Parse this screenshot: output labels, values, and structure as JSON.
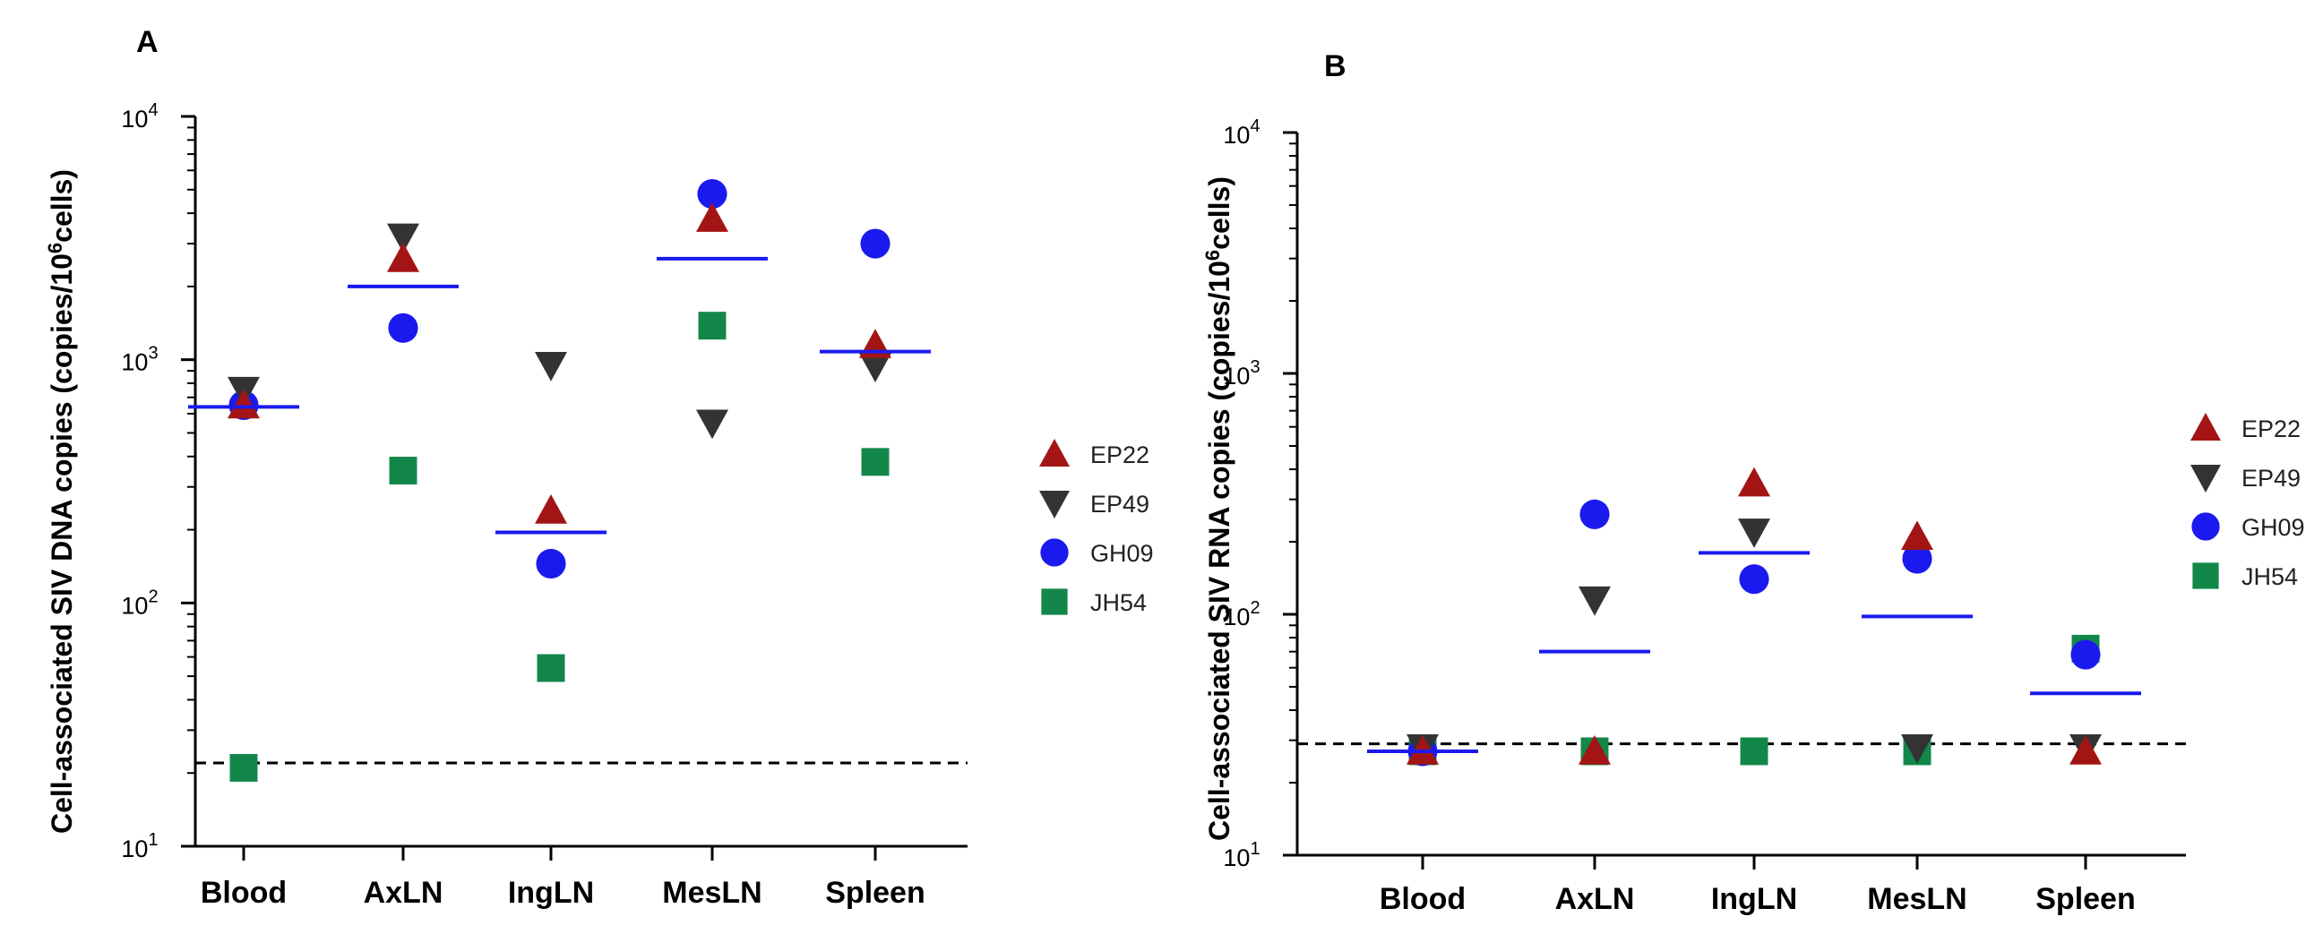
{
  "chart_data": [
    {
      "type": "scatter",
      "panel": "A",
      "categories": [
        "Blood",
        "AxLN",
        "IngLN",
        "MesLN",
        "Spleen"
      ],
      "ylabel": "Cell-associated SIV DNA copies (copies/10^6cells)",
      "ylabel_parts": {
        "prefix": "Cell-associated SIV DNA copies (copies/10",
        "sup": "6",
        "suffix": "cells)"
      },
      "yscale": "log",
      "ylim": [
        10,
        10000
      ],
      "yticks": [
        {
          "value": 10,
          "base": "10",
          "exp": "1"
        },
        {
          "value": 100,
          "base": "10",
          "exp": "2"
        },
        {
          "value": 1000,
          "base": "10",
          "exp": "3"
        },
        {
          "value": 10000,
          "base": "10",
          "exp": "4"
        }
      ],
      "detection_limit": 22,
      "means": [
        640,
        2000,
        195,
        2600,
        1080
      ],
      "series": [
        {
          "name": "EP22",
          "values": [
            650,
            2600,
            240,
            3800,
            1150
          ]
        },
        {
          "name": "EP49",
          "values": [
            750,
            3200,
            950,
            550,
            940
          ]
        },
        {
          "name": "GH09",
          "values": [
            650,
            1350,
            145,
            4800,
            3000
          ]
        },
        {
          "name": "JH54",
          "values": [
            21,
            350,
            54,
            1380,
            380
          ]
        }
      ]
    },
    {
      "type": "scatter",
      "panel": "B",
      "categories": [
        "Blood",
        "AxLN",
        "IngLN",
        "MesLN",
        "Spleen"
      ],
      "ylabel": "Cell-associated SIV RNA copies (copies/10^6cells)",
      "ylabel_parts": {
        "prefix": "Cell-associated SIV RNA copies (copies/10",
        "sup": "6",
        "suffix": "cells)"
      },
      "yscale": "log",
      "ylim": [
        10,
        10000
      ],
      "yticks": [
        {
          "value": 10,
          "base": "10",
          "exp": "1"
        },
        {
          "value": 100,
          "base": "10",
          "exp": "2"
        },
        {
          "value": 1000,
          "base": "10",
          "exp": "3"
        },
        {
          "value": 10000,
          "base": "10",
          "exp": "4"
        }
      ],
      "detection_limit": 29,
      "means": [
        27,
        70,
        180,
        98,
        47
      ],
      "series": [
        {
          "name": "EP22",
          "values": [
            27,
            27,
            350,
            210,
            27
          ]
        },
        {
          "name": "EP49",
          "values": [
            28,
            115,
            220,
            28,
            28
          ]
        },
        {
          "name": "GH09",
          "values": [
            27,
            260,
            140,
            170,
            68
          ]
        },
        {
          "name": "JH54",
          "values": [
            27,
            27,
            27,
            27,
            72
          ]
        }
      ]
    }
  ],
  "legend": [
    {
      "name": "EP22",
      "marker": "triangle-up",
      "color": "#a31515"
    },
    {
      "name": "EP49",
      "marker": "triangle-down",
      "color": "#333333"
    },
    {
      "name": "GH09",
      "marker": "circle",
      "color": "#1a1aee"
    },
    {
      "name": "JH54",
      "marker": "square",
      "color": "#13874a"
    }
  ],
  "colors": {
    "mean_line": "#1a1aee",
    "detection_line": "#000000",
    "axis": "#000000"
  }
}
